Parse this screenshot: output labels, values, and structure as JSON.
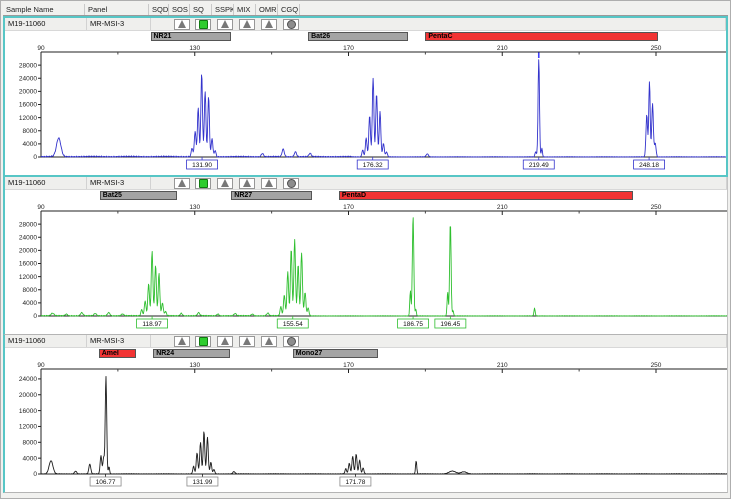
{
  "header": {
    "columns": [
      "Sample Name",
      "Panel",
      "SQD",
      "SOS",
      "SQ",
      "SSPK",
      "MIX",
      "OMR",
      "CGQ"
    ]
  },
  "flag_icons": [
    "none",
    "triangle",
    "square",
    "triangle",
    "triangle",
    "triangle",
    "circle"
  ],
  "colors": {
    "selection": "#57c6c6",
    "marker_gray": "#a4a4a4",
    "marker_red": "#f23434",
    "flag_triangle": "#787878",
    "flag_square_green": "#2ecc2e",
    "flag_circle": "#8d8d8d"
  },
  "axis": {
    "x_ticks": [
      90,
      130,
      170,
      210,
      250
    ],
    "x_minor_ticks": [
      110,
      150,
      190,
      230
    ]
  },
  "chart_data": [
    {
      "type": "line",
      "title": "MSI trace 1 (blue dye)",
      "sample_name": "M19-11060",
      "panel_name": "MR-MSI-3",
      "selected": true,
      "trace_color": "#3333cc",
      "y_ticks": [
        0,
        4000,
        8000,
        12000,
        16000,
        20000,
        24000,
        28000
      ],
      "y_max": 32000,
      "cursor_bp": 219.5,
      "markers": [
        {
          "label": "NR21",
          "start": 118.5,
          "end": 139.5,
          "color": "gray"
        },
        {
          "label": "Bat26",
          "start": 159.5,
          "end": 185.5,
          "color": "gray"
        },
        {
          "label": "PentaC",
          "start": 190.0,
          "end": 250.5,
          "color": "red"
        }
      ],
      "noise_zones": [
        [
          90,
          130,
          380
        ],
        [
          130,
          171,
          320
        ],
        [
          171,
          270,
          130
        ]
      ],
      "peaks": [
        [
          94.6,
          5600,
          0.8
        ],
        [
          129.3,
          2600
        ],
        [
          130.1,
          7800
        ],
        [
          130.9,
          14800
        ],
        [
          131.8,
          25300
        ],
        [
          132.7,
          19800
        ],
        [
          133.6,
          18200
        ],
        [
          134.5,
          5600
        ],
        [
          135.3,
          1900
        ],
        [
          147.6,
          1000,
          0.4
        ],
        [
          153.0,
          2300,
          0.4
        ],
        [
          156.2,
          1500,
          0.4
        ],
        [
          160.0,
          1000,
          0.4
        ],
        [
          173.7,
          2100
        ],
        [
          174.6,
          5800
        ],
        [
          175.5,
          12600
        ],
        [
          176.4,
          23900
        ],
        [
          177.3,
          19300
        ],
        [
          178.2,
          13800
        ],
        [
          179.1,
          4100
        ],
        [
          179.9,
          1500
        ],
        [
          190.5,
          900,
          0.4
        ],
        [
          218.7,
          1600,
          0.25
        ],
        [
          219.5,
          29800,
          0.26
        ],
        [
          220.3,
          2600,
          0.22
        ],
        [
          247.6,
          12800
        ],
        [
          248.3,
          22900,
          0.26
        ],
        [
          249.1,
          16300
        ],
        [
          249.8,
          4200
        ]
      ],
      "peak_labels": [
        {
          "text": "131.90",
          "bp": 131.9
        },
        {
          "text": "176.32",
          "bp": 176.3
        },
        {
          "text": "219.49",
          "bp": 219.5
        },
        {
          "text": "248.18",
          "bp": 248.2
        }
      ]
    },
    {
      "type": "line",
      "title": "MSI trace 2 (green dye)",
      "sample_name": "M19-11060",
      "panel_name": "MR-MSI-3",
      "selected": false,
      "trace_color": "#2fbf2f",
      "y_ticks": [
        0,
        4000,
        8000,
        12000,
        16000,
        20000,
        24000,
        28000
      ],
      "y_max": 32000,
      "cursor_bp": null,
      "markers": [
        {
          "label": "Bat25",
          "start": 105.3,
          "end": 125.5,
          "color": "gray"
        },
        {
          "label": "NR27",
          "start": 139.5,
          "end": 160.5,
          "color": "gray"
        },
        {
          "label": "PentaD",
          "start": 167.5,
          "end": 244.0,
          "color": "red"
        }
      ],
      "noise_zones": [
        [
          90,
          125,
          260
        ],
        [
          125,
          160,
          260
        ],
        [
          160,
          270,
          110
        ]
      ],
      "peaks": [
        [
          93.0,
          750,
          0.5
        ],
        [
          96.6,
          520,
          0.4
        ],
        [
          100.6,
          950,
          0.45
        ],
        [
          104.1,
          680,
          0.4
        ],
        [
          107.6,
          980,
          0.45
        ],
        [
          111.2,
          540,
          0.4
        ],
        [
          116.2,
          1900
        ],
        [
          117.1,
          4600
        ],
        [
          118.0,
          9800
        ],
        [
          118.9,
          19700
        ],
        [
          119.8,
          15400
        ],
        [
          120.7,
          12900
        ],
        [
          121.6,
          3900
        ],
        [
          122.4,
          1300
        ],
        [
          126.5,
          750,
          0.4
        ],
        [
          131.0,
          900,
          0.4
        ],
        [
          136.0,
          550,
          0.4
        ],
        [
          140.5,
          650,
          0.4
        ],
        [
          145.0,
          520,
          0.4
        ],
        [
          149.0,
          800,
          0.4
        ],
        [
          152.4,
          2700
        ],
        [
          153.3,
          6400
        ],
        [
          154.2,
          13400
        ],
        [
          155.1,
          20400
        ],
        [
          156.0,
          23300
        ],
        [
          156.9,
          15600
        ],
        [
          157.8,
          19100
        ],
        [
          158.7,
          7100
        ],
        [
          159.5,
          2300
        ],
        [
          186.1,
          7600,
          0.22
        ],
        [
          186.8,
          30600,
          0.26
        ],
        [
          187.5,
          2100,
          0.2
        ],
        [
          195.8,
          7300,
          0.22
        ],
        [
          196.5,
          28600,
          0.26
        ],
        [
          197.2,
          1600,
          0.2
        ],
        [
          218.4,
          2300,
          0.22
        ]
      ],
      "peak_labels": [
        {
          "text": "118.97",
          "bp": 118.9
        },
        {
          "text": "155.54",
          "bp": 155.5
        },
        {
          "text": "186.75",
          "bp": 186.8
        },
        {
          "text": "196.45",
          "bp": 196.5
        }
      ]
    },
    {
      "type": "line",
      "title": "MSI trace 3 (black dye)",
      "sample_name": "M19-11060",
      "panel_name": "MR-MSI-3",
      "selected": false,
      "trace_color": "#1c1c1c",
      "y_ticks": [
        0,
        4000,
        8000,
        12000,
        16000,
        20000,
        24000
      ],
      "y_max": 26500,
      "cursor_bp": null,
      "markers": [
        {
          "label": "Amel",
          "start": 105.0,
          "end": 114.6,
          "color": "red"
        },
        {
          "label": "NR24",
          "start": 119.2,
          "end": 139.3,
          "color": "gray"
        },
        {
          "label": "Mono27",
          "start": 155.5,
          "end": 177.8,
          "color": "gray"
        }
      ],
      "noise_zones": [
        [
          90,
          270,
          110
        ]
      ],
      "peaks": [
        [
          92.6,
          3300,
          0.7
        ],
        [
          99.0,
          700,
          0.4
        ],
        [
          102.7,
          2450,
          0.35
        ],
        [
          105.6,
          4600,
          0.3
        ],
        [
          106.3,
          4100,
          0.28
        ],
        [
          106.9,
          24700,
          0.27
        ],
        [
          107.7,
          1800,
          0.22
        ],
        [
          129.7,
          1900
        ],
        [
          130.6,
          5300
        ],
        [
          131.5,
          7900
        ],
        [
          132.4,
          10700
        ],
        [
          133.3,
          9300
        ],
        [
          134.2,
          2900
        ],
        [
          135.0,
          1100
        ],
        [
          140.2,
          550,
          0.4
        ],
        [
          169.3,
          1300
        ],
        [
          170.2,
          2700
        ],
        [
          171.1,
          4400
        ],
        [
          172.0,
          5000
        ],
        [
          172.9,
          3500
        ],
        [
          173.8,
          1500
        ],
        [
          187.6,
          3300,
          0.22
        ],
        [
          197.0,
          700,
          1.2
        ],
        [
          200.0,
          520,
          1.0
        ]
      ],
      "peak_labels": [
        {
          "text": "106.77",
          "bp": 106.8
        },
        {
          "text": "131.99",
          "bp": 132.0
        },
        {
          "text": "171.78",
          "bp": 171.8
        }
      ]
    }
  ]
}
